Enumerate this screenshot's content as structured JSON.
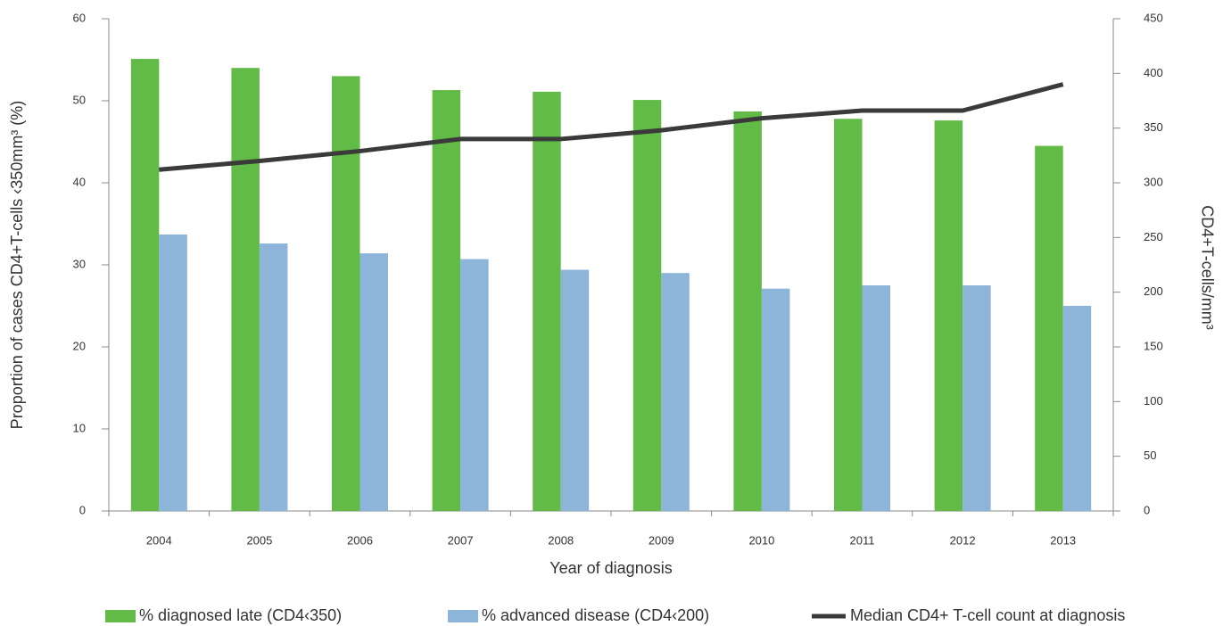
{
  "chart_data": {
    "type": "bar",
    "categories": [
      "2004",
      "2005",
      "2006",
      "2007",
      "2008",
      "2009",
      "2010",
      "2011",
      "2012",
      "2013"
    ],
    "series": [
      {
        "name": "% diagnosed late (CD4‹350)",
        "color": "#62bb46",
        "values": [
          55.1,
          54.0,
          53.0,
          51.3,
          51.1,
          50.1,
          48.7,
          47.8,
          47.6,
          44.5
        ]
      },
      {
        "name": "% advanced disease (CD4‹200)",
        "color": "#8db4d9",
        "values": [
          33.7,
          32.6,
          31.4,
          30.7,
          29.4,
          29.0,
          27.1,
          27.5,
          27.5,
          25.0
        ]
      },
      {
        "name": "Median CD4+ T-cell count at diagnosis",
        "color": "#3a3a3a",
        "type": "line",
        "axis": "y2",
        "values": [
          312,
          320,
          329,
          340,
          340,
          348,
          359,
          366,
          366,
          390
        ]
      }
    ],
    "xlabel": "Year of diagnosis",
    "ylabel": "Proportion of cases CD4+T-cells ‹350mm³  (%)",
    "y2label": "CD4+T-cells/mm³",
    "ylim": [
      0,
      60
    ],
    "yticks": [
      0,
      10,
      20,
      30,
      40,
      50,
      60
    ],
    "y2lim": [
      0,
      450
    ],
    "y2ticks": [
      0,
      50,
      100,
      150,
      200,
      250,
      300,
      350,
      400,
      450
    ],
    "grid": false,
    "legend": "bottom"
  }
}
